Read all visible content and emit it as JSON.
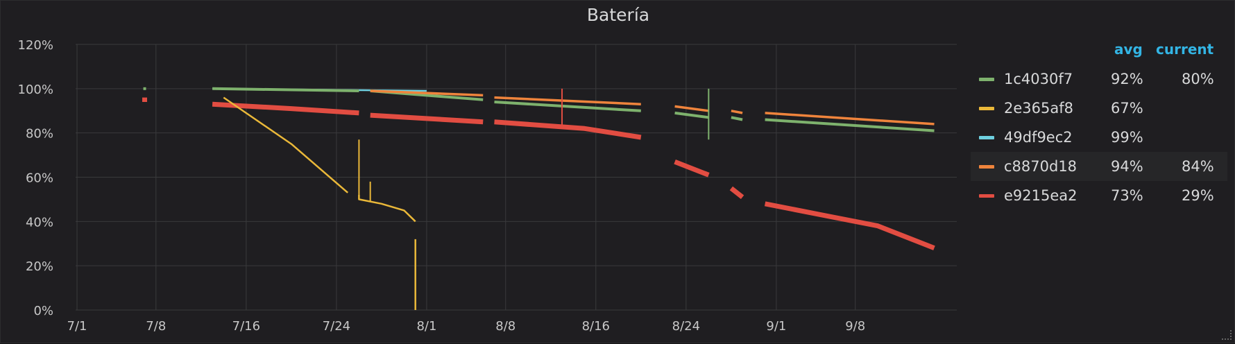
{
  "panel": {
    "title": "Batería"
  },
  "legend": {
    "avg_label": "avg",
    "current_label": "current",
    "items": [
      {
        "name": "1c4030f7",
        "avg": "92%",
        "current": "80%",
        "color": "#7eb26d"
      },
      {
        "name": "2e365af8",
        "avg": "67%",
        "current": "",
        "color": "#eab839"
      },
      {
        "name": "49df9ec2",
        "avg": "99%",
        "current": "",
        "color": "#6ed0e0"
      },
      {
        "name": "c8870d18",
        "avg": "94%",
        "current": "84%",
        "color": "#ef843c"
      },
      {
        "name": "e9215ea2",
        "avg": "73%",
        "current": "29%",
        "color": "#e24d42"
      }
    ]
  },
  "chart_data": {
    "type": "line",
    "title": "Batería",
    "x_unit": "date",
    "x_ticks": [
      "7/1",
      "7/8",
      "7/16",
      "7/24",
      "8/1",
      "8/8",
      "8/16",
      "8/24",
      "9/1",
      "9/8"
    ],
    "x_tick_dates": [
      "2017-07-01",
      "2017-07-08",
      "2017-07-16",
      "2017-07-24",
      "2017-08-01",
      "2017-08-08",
      "2017-08-16",
      "2017-08-24",
      "2017-09-01",
      "2017-09-08"
    ],
    "xlim": [
      "2017-07-01",
      "2017-09-17"
    ],
    "y_ticks": [
      "0%",
      "20%",
      "40%",
      "60%",
      "80%",
      "100%",
      "120%"
    ],
    "ylim": [
      0,
      120
    ],
    "grid": true,
    "legend_position": "right",
    "series": [
      {
        "name": "1c4030f7",
        "color": "#7eb26d",
        "segments": [
          [
            [
              "2017-07-07",
              100
            ]
          ],
          [
            [
              "2017-07-13",
              100
            ],
            [
              "2017-07-26",
              99
            ]
          ],
          [
            [
              "2017-07-27",
              99
            ],
            [
              "2017-08-06",
              95
            ]
          ],
          [
            [
              "2017-08-07",
              94
            ],
            [
              "2017-08-20",
              90
            ]
          ],
          [
            [
              "2017-08-23",
              89
            ],
            [
              "2017-08-26",
              87
            ]
          ],
          [
            [
              "2017-08-28",
              87
            ],
            [
              "2017-08-29",
              86
            ]
          ],
          [
            [
              "2017-08-31",
              86
            ],
            [
              "2017-09-15",
              81
            ]
          ]
        ]
      },
      {
        "name": "2e365af8",
        "color": "#eab839",
        "segments": [
          [
            [
              "2017-07-14",
              96
            ],
            [
              "2017-07-20",
              75
            ],
            [
              "2017-07-25",
              53
            ]
          ],
          [
            [
              "2017-07-26",
              52
            ],
            [
              "2017-07-26",
              50
            ],
            [
              "2017-07-28",
              48
            ],
            [
              "2017-07-30",
              45
            ],
            [
              "2017-07-31",
              40
            ]
          ],
          [
            [
              "2017-07-31",
              32
            ],
            [
              "2017-07-31",
              0
            ]
          ]
        ]
      },
      {
        "name": "49df9ec2",
        "color": "#6ed0e0",
        "segments": [
          [
            [
              "2017-07-13",
              100
            ],
            [
              "2017-08-01",
              99
            ]
          ]
        ]
      },
      {
        "name": "c8870d18",
        "color": "#ef843c",
        "segments": [
          [
            [
              "2017-07-27",
              99
            ],
            [
              "2017-08-06",
              97
            ]
          ],
          [
            [
              "2017-08-07",
              96
            ],
            [
              "2017-08-20",
              93
            ]
          ],
          [
            [
              "2017-08-23",
              92
            ],
            [
              "2017-08-26",
              90
            ]
          ],
          [
            [
              "2017-08-28",
              90
            ],
            [
              "2017-08-29",
              89
            ]
          ],
          [
            [
              "2017-08-31",
              89
            ],
            [
              "2017-09-15",
              84
            ]
          ]
        ]
      },
      {
        "name": "e9215ea2",
        "color": "#e24d42",
        "segments": [
          [
            [
              "2017-07-07",
              96
            ],
            [
              "2017-07-07",
              94
            ]
          ],
          [
            [
              "2017-07-13",
              93
            ],
            [
              "2017-07-20",
              91
            ],
            [
              "2017-07-26",
              89
            ]
          ],
          [
            [
              "2017-07-27",
              88
            ],
            [
              "2017-08-06",
              85
            ]
          ],
          [
            [
              "2017-08-07",
              85
            ],
            [
              "2017-08-15",
              82
            ],
            [
              "2017-08-20",
              78
            ]
          ],
          [
            [
              "2017-08-23",
              67
            ],
            [
              "2017-08-26",
              61
            ]
          ],
          [
            [
              "2017-08-28",
              55
            ],
            [
              "2017-08-29",
              51
            ]
          ],
          [
            [
              "2017-08-31",
              48
            ],
            [
              "2017-09-05",
              43
            ],
            [
              "2017-09-10",
              38
            ],
            [
              "2017-09-15",
              28
            ]
          ]
        ]
      }
    ],
    "annotations_spikes": [
      {
        "series": "2e365af8",
        "date": "2017-07-26",
        "from": 50,
        "to": 77
      },
      {
        "series": "2e365af8",
        "date": "2017-07-27",
        "from": 49,
        "to": 58
      },
      {
        "series": "1c4030f7",
        "date": "2017-08-26",
        "from": 77,
        "to": 100
      },
      {
        "series": "e9215ea2",
        "date": "2017-08-13",
        "from": 82,
        "to": 100
      }
    ]
  }
}
